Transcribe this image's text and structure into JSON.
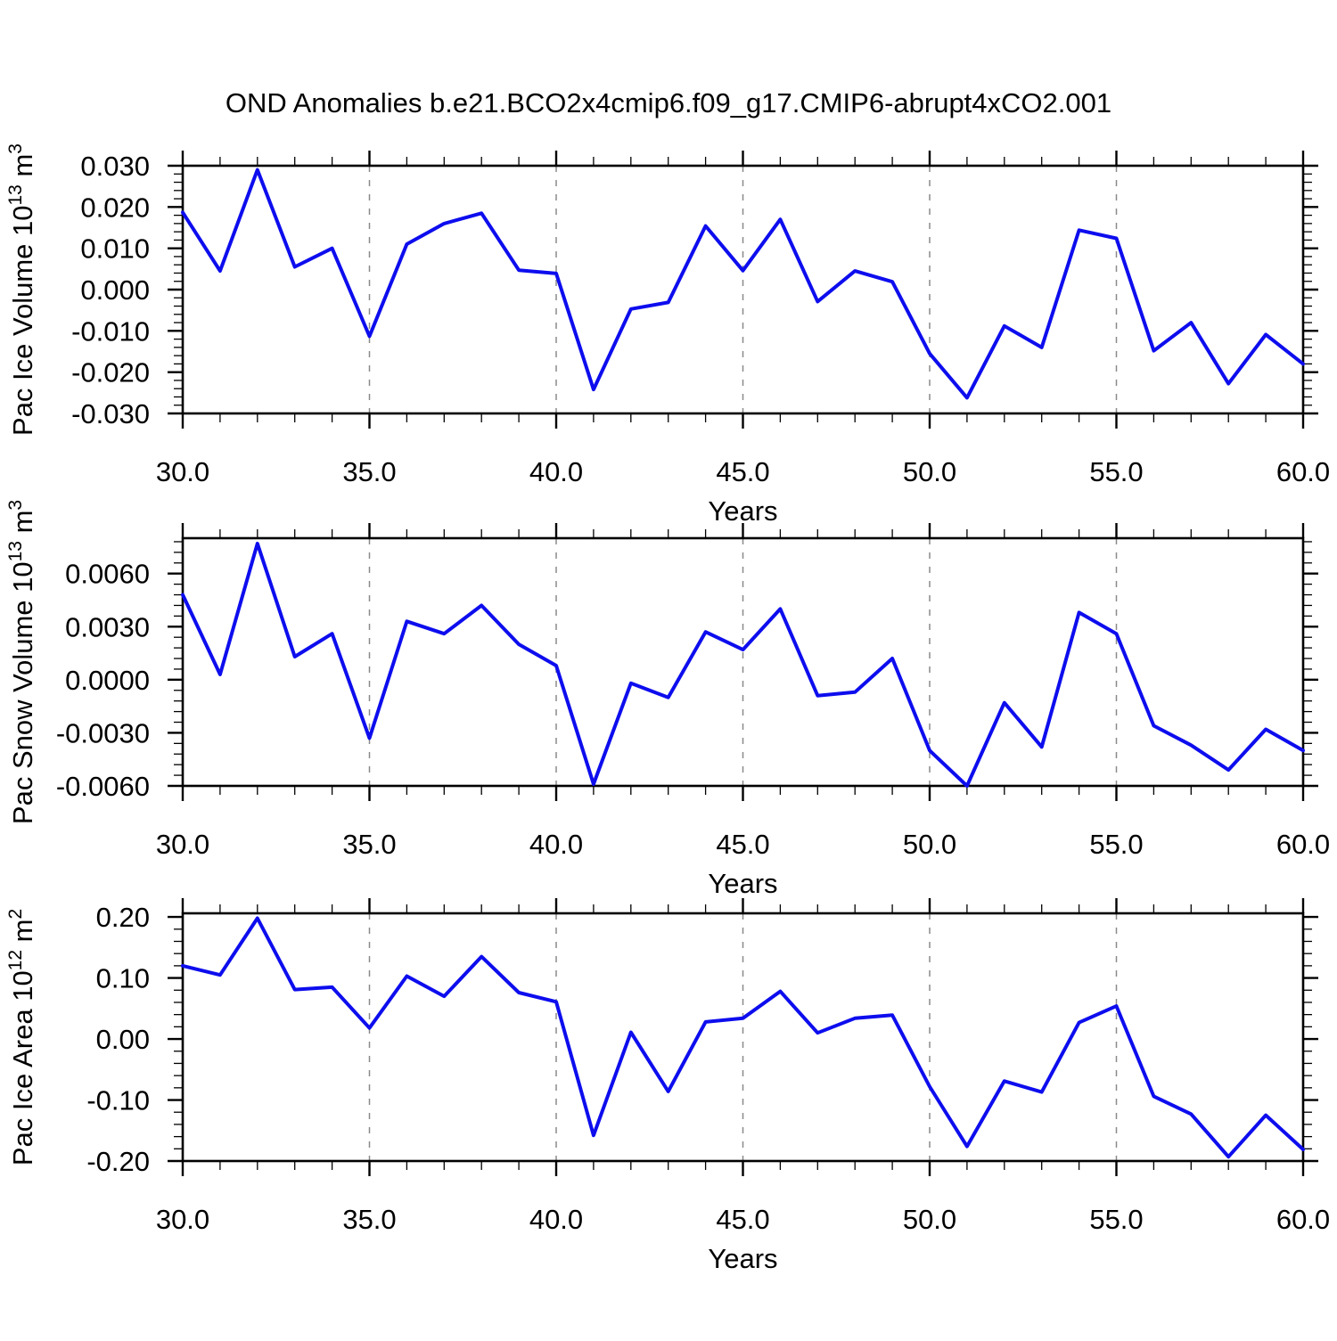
{
  "title": "OND Anomalies b.e21.BCO2x4cmip6.f09_g17.CMIP6-abrupt4xCO2.001",
  "colors": {
    "line": "#0d0dee",
    "frame": "#000000",
    "grid": "#8a8a8a",
    "text": "#000000",
    "background": "#ffffff"
  },
  "x_axis": {
    "label": "Years",
    "range": [
      30,
      60
    ],
    "major_tick_step": 5,
    "minor_tick_step": 1,
    "tick_values": [
      30,
      35,
      40,
      45,
      50,
      55,
      60
    ],
    "tick_labels": [
      "30.0",
      "35.0",
      "40.0",
      "45.0",
      "50.0",
      "55.0",
      "60.0"
    ],
    "gridline_values": [
      35,
      40,
      45,
      50,
      55
    ],
    "grid_style": "dashed-vertical"
  },
  "chart_data": [
    {
      "type": "line",
      "ylabel_plain": "Pac Ice Volume 10^13 m^3",
      "ylabel_parts": [
        {
          "t": "Pac Ice Volume 10"
        },
        {
          "t": "13",
          "sup": true
        },
        {
          "t": " m"
        },
        {
          "t": "3",
          "sup": true
        }
      ],
      "xlabel": "Years",
      "ylim": [
        -0.03,
        0.03
      ],
      "ytick_values": [
        0.03,
        0.02,
        0.01,
        0.0,
        -0.01,
        -0.02,
        -0.03
      ],
      "ytick_labels": [
        "0.030",
        "0.020",
        "0.010",
        "0.000",
        "-0.010",
        "-0.020",
        "-0.030"
      ],
      "ytick_minor_step": 0.002,
      "x": [
        30,
        31,
        32,
        33,
        34,
        35,
        36,
        37,
        38,
        39,
        40,
        41,
        42,
        43,
        44,
        45,
        46,
        47,
        48,
        49,
        50,
        51,
        52,
        53,
        54,
        55,
        56,
        57,
        58,
        59,
        60
      ],
      "values": [
        0.0187,
        0.0045,
        0.029,
        0.0055,
        0.01,
        -0.0113,
        0.011,
        0.016,
        0.0185,
        0.0047,
        0.0039,
        -0.0242,
        -0.0047,
        -0.0031,
        0.0154,
        0.0046,
        0.017,
        -0.0029,
        0.0045,
        0.0019,
        -0.0155,
        -0.0262,
        -0.0088,
        -0.014,
        0.0144,
        0.0124,
        -0.0148,
        -0.008,
        -0.0228,
        -0.0109,
        -0.018
      ]
    },
    {
      "type": "line",
      "ylabel_plain": "Pac Snow Volume 10^13 m^3",
      "ylabel_parts": [
        {
          "t": "Pac Snow Volume 10"
        },
        {
          "t": "13",
          "sup": true
        },
        {
          "t": " m"
        },
        {
          "t": "3",
          "sup": true
        }
      ],
      "xlabel": "Years",
      "ylim": [
        -0.006,
        0.008
      ],
      "ytick_values": [
        0.006,
        0.003,
        0.0,
        -0.003,
        -0.006
      ],
      "ytick_labels": [
        "0.0060",
        "0.0030",
        "0.0000",
        "-0.0030",
        "-0.0060"
      ],
      "ytick_minor_step": 0.0006,
      "x": [
        30,
        31,
        32,
        33,
        34,
        35,
        36,
        37,
        38,
        39,
        40,
        41,
        42,
        43,
        44,
        45,
        46,
        47,
        48,
        49,
        50,
        51,
        52,
        53,
        54,
        55,
        56,
        57,
        58,
        59,
        60
      ],
      "values": [
        0.0048,
        0.0003,
        0.0077,
        0.0013,
        0.0026,
        -0.0033,
        0.0033,
        0.0026,
        0.0042,
        0.002,
        0.0008,
        -0.0059,
        -0.0002,
        -0.001,
        0.0027,
        0.0017,
        0.004,
        -0.0009,
        -0.0007,
        0.0012,
        -0.004,
        -0.006,
        -0.0013,
        -0.0038,
        0.0038,
        0.0026,
        -0.0026,
        -0.0037,
        -0.0051,
        -0.0028,
        -0.004
      ]
    },
    {
      "type": "line",
      "ylabel_plain": "Pac Ice Area 10^12 m^2",
      "ylabel_parts": [
        {
          "t": "Pac Ice Area 10"
        },
        {
          "t": "12",
          "sup": true
        },
        {
          "t": " m"
        },
        {
          "t": "2",
          "sup": true
        }
      ],
      "xlabel": "Years",
      "ylim": [
        -0.2,
        0.206
      ],
      "ytick_values": [
        0.2,
        0.1,
        0.0,
        -0.1,
        -0.2
      ],
      "ytick_labels": [
        "0.20",
        "0.10",
        "0.00",
        "-0.10",
        "-0.20"
      ],
      "ytick_minor_step": 0.02,
      "x": [
        30,
        31,
        32,
        33,
        34,
        35,
        36,
        37,
        38,
        39,
        40,
        41,
        42,
        43,
        44,
        45,
        46,
        47,
        48,
        49,
        50,
        51,
        52,
        53,
        54,
        55,
        56,
        57,
        58,
        59,
        60
      ],
      "values": [
        0.12,
        0.105,
        0.198,
        0.081,
        0.085,
        0.018,
        0.103,
        0.07,
        0.135,
        0.076,
        0.061,
        -0.158,
        0.011,
        -0.086,
        0.028,
        0.034,
        0.078,
        0.01,
        0.034,
        0.039,
        -0.078,
        -0.176,
        -0.069,
        -0.087,
        0.027,
        0.054,
        -0.094,
        -0.123,
        -0.193,
        -0.125,
        -0.181
      ]
    }
  ]
}
